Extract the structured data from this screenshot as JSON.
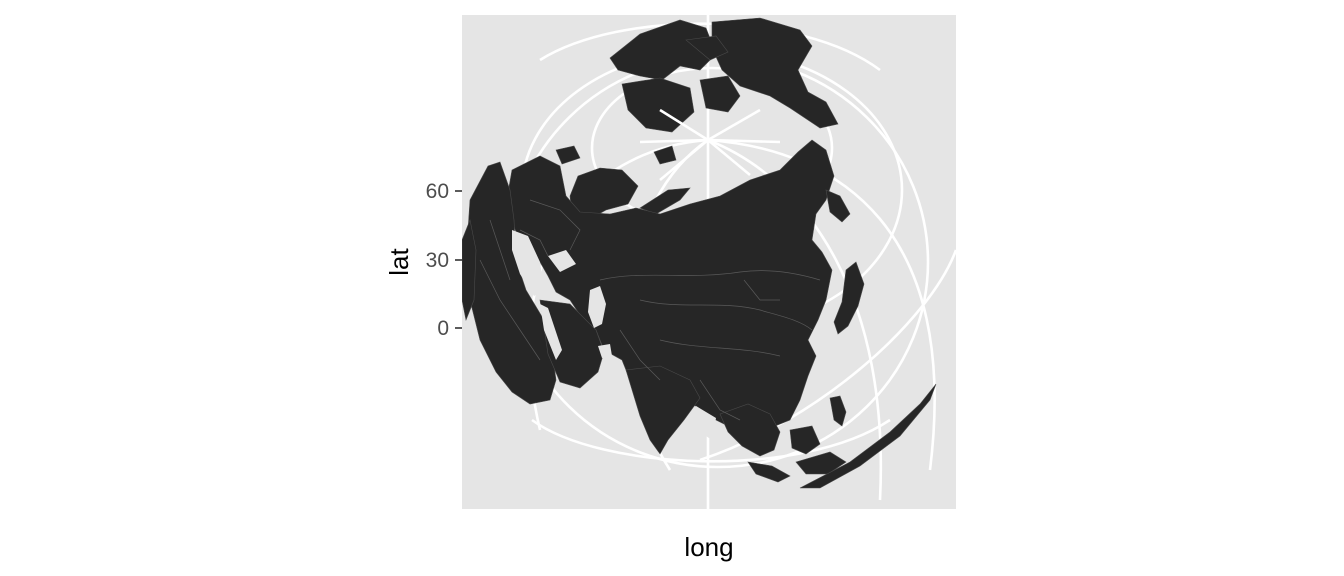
{
  "map": {
    "projection": "orthographic",
    "panel_background": "#e5e5e5",
    "land_color": "#262626",
    "graticule_color": "#ffffff",
    "x_axis": {
      "title": "long"
    },
    "y_axis": {
      "title": "lat",
      "ticks": [
        {
          "label": "60",
          "value": 60
        },
        {
          "label": "30",
          "value": 30
        },
        {
          "label": "0",
          "value": 0
        }
      ]
    }
  }
}
